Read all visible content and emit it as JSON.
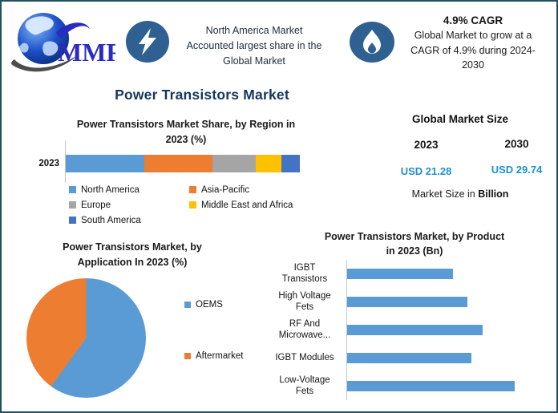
{
  "header": {
    "logo": {
      "text": "MMR"
    },
    "north_america_note": "North America Market\nAccounted largest share in the\nGlobal Market",
    "cagr": {
      "title": "4.9% CAGR",
      "body": "Global Market to grow at a\nCAGR of 4.9% during 2024-\n2030"
    }
  },
  "main_title": "Power Transistors Market",
  "market_size": {
    "title": "Global Market Size",
    "year_left": "2023",
    "year_right": "2030",
    "value_left": "USD 21.28",
    "value_right": "USD 29.74",
    "caption_prefix": "Market Size in ",
    "caption_unit": "Billion"
  },
  "chart_data": [
    {
      "id": "region-share",
      "type": "bar",
      "variant": "horizontal-stacked",
      "title": "Power Transistors Market Share, by Region in\n2023 (%)",
      "categories": [
        "2023"
      ],
      "series": [
        {
          "name": "North America",
          "values": [
            33.5
          ],
          "color": "#5B9BD5"
        },
        {
          "name": "Asia-Pacific",
          "values": [
            29
          ],
          "color": "#ED7D31"
        },
        {
          "name": "Europe",
          "values": [
            18.5
          ],
          "color": "#A5A5A5"
        },
        {
          "name": "Middle East and Africa",
          "values": [
            11
          ],
          "color": "#FFC000"
        },
        {
          "name": "South America",
          "values": [
            8
          ],
          "color": "#4472C4"
        }
      ],
      "xlim": [
        0,
        100
      ],
      "legend_position": "bottom"
    },
    {
      "id": "application-share",
      "type": "pie",
      "title": "Power Transistors Market, by\nApplication In 2023 (%)",
      "slices": [
        {
          "label": "OEMS",
          "value": 60,
          "color": "#5B9BD5"
        },
        {
          "label": "Aftermarket",
          "value": 40,
          "color": "#ED7D31"
        }
      ],
      "start_angle_deg": 0,
      "legend_position": "right"
    },
    {
      "id": "product-size",
      "type": "bar",
      "variant": "horizontal",
      "title": "Power Transistors Market, by Product\nin 2023 (Bn)",
      "categories": [
        "IGBT\nTransistors",
        "High Voltage\nFets",
        "RF And\nMicrowave...",
        "IGBT Modules",
        "Low-Voltage\nFets"
      ],
      "values": [
        0.63,
        0.72,
        0.81,
        0.74,
        1.0
      ],
      "value_scale": "relative bar length, axis unlabeled",
      "bar_color": "#5B9BD5",
      "legend_position": "none"
    }
  ],
  "colors": {
    "accent_navy": "#16365C",
    "value_blue": "#1E8FD0",
    "badge_blue": "#2E6191",
    "frame_border": "#21505F",
    "axis_gray": "#C6C6C6"
  }
}
